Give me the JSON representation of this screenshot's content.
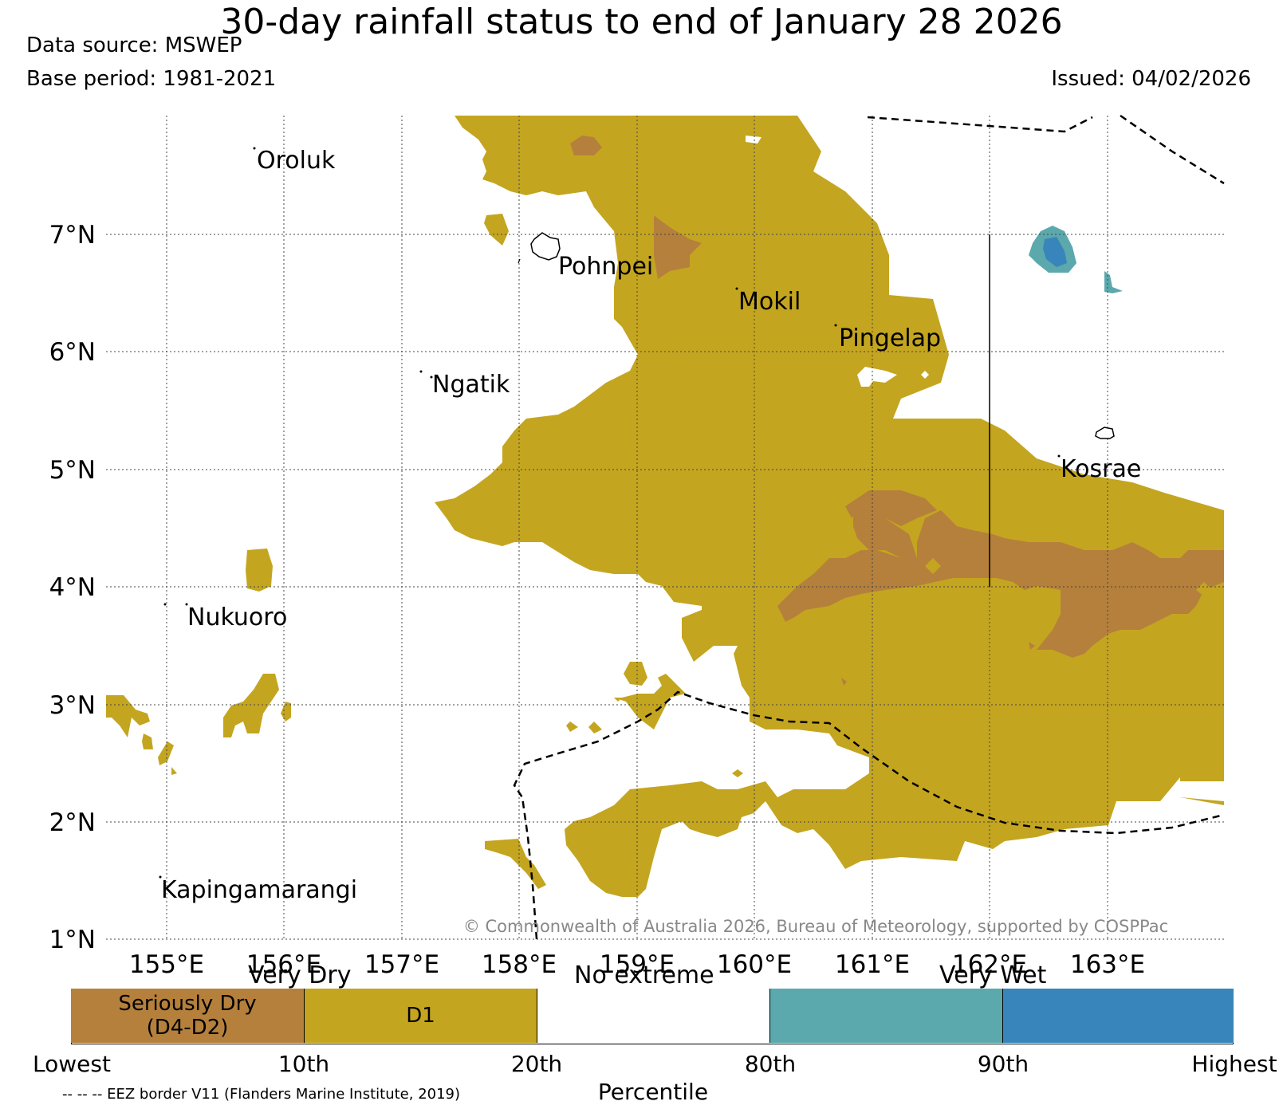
{
  "title": "30-day rainfall status to end of January 28 2026",
  "data_source": "Data source: MSWEP",
  "base_period": "Base period: 1981-2021",
  "issued": "Issued: 04/02/2026",
  "copyright": "© Commonwealth of Australia 2026, Bureau of Meteorology, supported by COSPPac",
  "lat_labels": [
    "7°N",
    "6°N",
    "5°N",
    "4°N",
    "3°N",
    "2°N",
    "1°N"
  ],
  "lon_labels": [
    "155°E",
    "156°E",
    "157°E",
    "158°E",
    "159°E",
    "160°E",
    "161°E",
    "162°E",
    "163°E"
  ],
  "places": [
    "Oroluk",
    "Pohnpei",
    "Mokil",
    "Pingelap",
    "Ngatik",
    "Kosrae",
    "Nukuoro",
    "Kapingamarangi"
  ],
  "legend": {
    "groups": [
      "Very Dry",
      "No extreme",
      "Very Wet"
    ],
    "boxes": [
      "Seriously Dry (D4-D2)",
      "D1",
      "",
      "",
      ""
    ],
    "box_line1": "Seriously Dry",
    "box_line2": "(D4-D2)",
    "d1": "D1",
    "ticks": [
      "Lowest",
      "10th",
      "20th",
      "80th",
      "90th",
      "Highest"
    ],
    "xlabel": "Percentile",
    "eez": "-- -- -- EEZ border V11 (Flanders Marine Institute, 2019)",
    "colors": {
      "seriously_dry": "#b5803c",
      "d1": "#c4a520",
      "no_extreme": "#ffffff",
      "wet": "#5ba8ad",
      "very_wet": "#3785bb"
    }
  }
}
